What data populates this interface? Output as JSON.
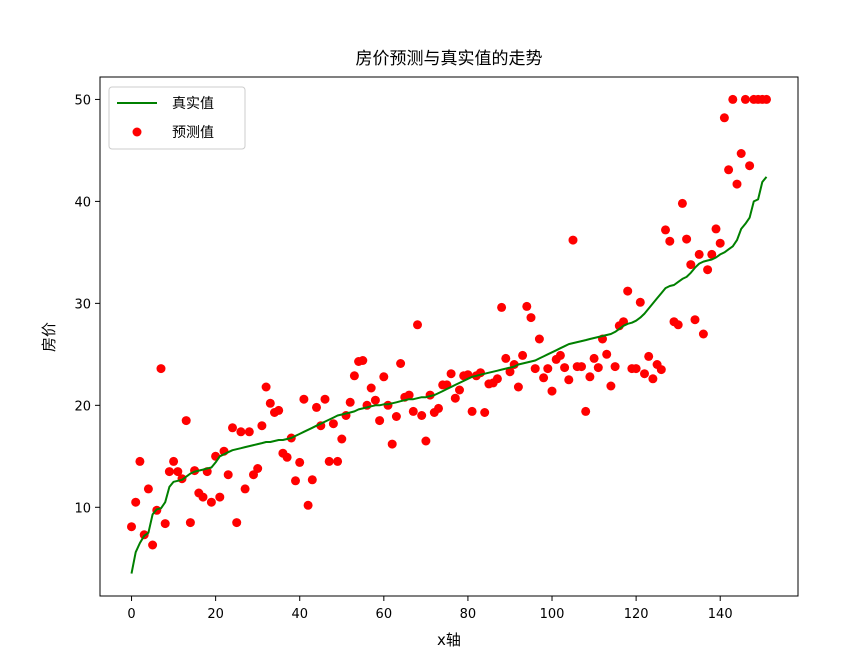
{
  "chart_data": {
    "type": "line+scatter",
    "title": "房价预测与真实值的走势",
    "xlabel": "x轴",
    "ylabel": "房价",
    "xlim": [
      -7.5,
      158.5
    ],
    "ylim": [
      1.3,
      52.2
    ],
    "xticks": [
      0,
      20,
      40,
      60,
      80,
      100,
      120,
      140
    ],
    "yticks": [
      10,
      20,
      30,
      40,
      50
    ],
    "grid": false,
    "legend_position": "top-left",
    "series": [
      {
        "name": "真实值",
        "kind": "line",
        "color": "#008000",
        "x": [
          0,
          1,
          2,
          3,
          4,
          5,
          6,
          7,
          8,
          9,
          10,
          11,
          12,
          13,
          14,
          15,
          16,
          17,
          18,
          19,
          20,
          21,
          22,
          23,
          24,
          25,
          26,
          27,
          28,
          29,
          30,
          31,
          32,
          33,
          34,
          35,
          36,
          37,
          38,
          39,
          40,
          41,
          42,
          43,
          44,
          45,
          46,
          47,
          48,
          49,
          50,
          51,
          52,
          53,
          54,
          55,
          56,
          57,
          58,
          59,
          60,
          61,
          62,
          63,
          64,
          65,
          66,
          67,
          68,
          69,
          70,
          71,
          72,
          73,
          74,
          75,
          76,
          77,
          78,
          79,
          80,
          81,
          82,
          83,
          84,
          85,
          86,
          87,
          88,
          89,
          90,
          91,
          92,
          93,
          94,
          95,
          96,
          97,
          98,
          99,
          100,
          101,
          102,
          103,
          104,
          105,
          106,
          107,
          108,
          109,
          110,
          111,
          112,
          113,
          114,
          115,
          116,
          117,
          118,
          119,
          120,
          121,
          122,
          123,
          124,
          125,
          126,
          127,
          128,
          129,
          130,
          131,
          132,
          133,
          134,
          135,
          136,
          137,
          138,
          139,
          140,
          141,
          142,
          143,
          144,
          145,
          146,
          147,
          148,
          149,
          150,
          151
        ],
        "y": [
          3.5,
          5.6,
          6.5,
          7.2,
          7.5,
          9.3,
          9.8,
          9.9,
          10.5,
          12.0,
          12.5,
          12.6,
          12.7,
          13.0,
          13.3,
          13.5,
          13.6,
          13.7,
          13.8,
          13.9,
          14.4,
          15.0,
          15.2,
          15.4,
          15.6,
          15.7,
          15.8,
          15.9,
          16.0,
          16.1,
          16.2,
          16.3,
          16.4,
          16.4,
          16.5,
          16.6,
          16.6,
          16.7,
          16.8,
          17.0,
          17.2,
          17.4,
          17.6,
          17.8,
          18.0,
          18.2,
          18.4,
          18.6,
          18.8,
          19.0,
          19.1,
          19.2,
          19.3,
          19.4,
          19.6,
          19.7,
          19.8,
          19.9,
          20.0,
          20.0,
          20.1,
          20.1,
          20.2,
          20.3,
          20.4,
          20.5,
          20.6,
          20.6,
          20.7,
          20.8,
          20.8,
          20.9,
          21.0,
          21.2,
          21.4,
          21.6,
          21.8,
          22.0,
          22.2,
          22.4,
          22.6,
          22.8,
          22.9,
          23.0,
          23.1,
          23.2,
          23.3,
          23.4,
          23.5,
          23.6,
          23.7,
          23.8,
          24.0,
          24.1,
          24.2,
          24.3,
          24.4,
          24.6,
          24.8,
          25.0,
          25.2,
          25.4,
          25.6,
          25.8,
          26.0,
          26.1,
          26.2,
          26.3,
          26.4,
          26.5,
          26.6,
          26.7,
          26.8,
          26.9,
          27.0,
          27.2,
          27.5,
          27.8,
          28.0,
          28.1,
          28.3,
          28.6,
          29.0,
          29.5,
          30.0,
          30.5,
          31.0,
          31.5,
          31.7,
          31.8,
          32.1,
          32.4,
          32.6,
          33.0,
          33.5,
          33.9,
          34.1,
          34.2,
          34.3,
          34.5,
          34.8,
          35.0,
          35.3,
          35.6,
          36.2,
          37.3,
          37.8,
          38.4,
          40.0,
          40.2,
          41.9,
          42.4
        ]
      },
      {
        "name": "预测值",
        "kind": "scatter",
        "color": "#ff0000",
        "points": [
          [
            0,
            8.1
          ],
          [
            1,
            10.5
          ],
          [
            2,
            14.5
          ],
          [
            3,
            7.3
          ],
          [
            4,
            11.8
          ],
          [
            5,
            6.3
          ],
          [
            6,
            9.7
          ],
          [
            7,
            23.6
          ],
          [
            8,
            8.4
          ],
          [
            9,
            13.5
          ],
          [
            10,
            14.5
          ],
          [
            11,
            13.5
          ],
          [
            12,
            12.8
          ],
          [
            13,
            18.5
          ],
          [
            14,
            8.5
          ],
          [
            15,
            13.6
          ],
          [
            16,
            11.4
          ],
          [
            17,
            11.0
          ],
          [
            18,
            13.5
          ],
          [
            19,
            10.5
          ],
          [
            20,
            15.0
          ],
          [
            21,
            11.0
          ],
          [
            22,
            15.5
          ],
          [
            23,
            13.2
          ],
          [
            24,
            17.8
          ],
          [
            25,
            8.5
          ],
          [
            26,
            17.4
          ],
          [
            27,
            11.8
          ],
          [
            28,
            17.4
          ],
          [
            29,
            13.2
          ],
          [
            30,
            13.8
          ],
          [
            31,
            18.0
          ],
          [
            32,
            21.8
          ],
          [
            33,
            20.2
          ],
          [
            34,
            19.3
          ],
          [
            35,
            19.5
          ],
          [
            36,
            15.3
          ],
          [
            37,
            14.9
          ],
          [
            38,
            16.8
          ],
          [
            39,
            12.6
          ],
          [
            40,
            14.4
          ],
          [
            41,
            20.6
          ],
          [
            42,
            10.2
          ],
          [
            43,
            12.7
          ],
          [
            44,
            19.8
          ],
          [
            45,
            18.0
          ],
          [
            46,
            20.6
          ],
          [
            47,
            14.5
          ],
          [
            48,
            18.2
          ],
          [
            49,
            14.5
          ],
          [
            50,
            16.7
          ],
          [
            51,
            19.0
          ],
          [
            52,
            20.3
          ],
          [
            53,
            22.9
          ],
          [
            54,
            24.3
          ],
          [
            55,
            24.4
          ],
          [
            56,
            20.0
          ],
          [
            57,
            21.7
          ],
          [
            58,
            20.5
          ],
          [
            59,
            18.5
          ],
          [
            60,
            22.8
          ],
          [
            61,
            20.0
          ],
          [
            62,
            16.2
          ],
          [
            63,
            18.9
          ],
          [
            64,
            24.1
          ],
          [
            65,
            20.8
          ],
          [
            66,
            21.0
          ],
          [
            67,
            19.4
          ],
          [
            68,
            27.9
          ],
          [
            69,
            19.0
          ],
          [
            70,
            16.5
          ],
          [
            71,
            21.0
          ],
          [
            72,
            19.3
          ],
          [
            73,
            19.7
          ],
          [
            74,
            22.0
          ],
          [
            75,
            22.0
          ],
          [
            76,
            23.1
          ],
          [
            77,
            20.7
          ],
          [
            78,
            21.5
          ],
          [
            79,
            22.9
          ],
          [
            80,
            23.0
          ],
          [
            81,
            19.4
          ],
          [
            82,
            22.9
          ],
          [
            83,
            23.2
          ],
          [
            84,
            19.3
          ],
          [
            85,
            22.1
          ],
          [
            86,
            22.2
          ],
          [
            87,
            22.6
          ],
          [
            88,
            29.6
          ],
          [
            89,
            24.6
          ],
          [
            90,
            23.3
          ],
          [
            91,
            24.0
          ],
          [
            92,
            21.8
          ],
          [
            93,
            24.9
          ],
          [
            94,
            29.7
          ],
          [
            95,
            28.6
          ],
          [
            96,
            23.6
          ],
          [
            97,
            26.5
          ],
          [
            98,
            22.7
          ],
          [
            99,
            23.6
          ],
          [
            100,
            21.4
          ],
          [
            101,
            24.5
          ],
          [
            102,
            24.9
          ],
          [
            103,
            23.7
          ],
          [
            104,
            22.5
          ],
          [
            105,
            36.2
          ],
          [
            106,
            23.8
          ],
          [
            107,
            23.8
          ],
          [
            108,
            19.4
          ],
          [
            109,
            22.8
          ],
          [
            110,
            24.6
          ],
          [
            111,
            23.7
          ],
          [
            112,
            26.5
          ],
          [
            113,
            25.0
          ],
          [
            114,
            21.9
          ],
          [
            115,
            23.8
          ],
          [
            116,
            27.8
          ],
          [
            117,
            28.2
          ],
          [
            118,
            31.2
          ],
          [
            119,
            23.6
          ],
          [
            120,
            23.6
          ],
          [
            121,
            30.1
          ],
          [
            122,
            23.1
          ],
          [
            123,
            24.8
          ],
          [
            124,
            22.6
          ],
          [
            125,
            24.0
          ],
          [
            126,
            23.5
          ],
          [
            127,
            37.2
          ],
          [
            128,
            36.1
          ],
          [
            129,
            28.2
          ],
          [
            130,
            27.9
          ],
          [
            131,
            39.8
          ],
          [
            132,
            36.3
          ],
          [
            133,
            33.8
          ],
          [
            134,
            28.4
          ],
          [
            135,
            34.8
          ],
          [
            136,
            27.0
          ],
          [
            137,
            33.3
          ],
          [
            138,
            34.8
          ],
          [
            139,
            37.3
          ],
          [
            140,
            35.9
          ],
          [
            141,
            48.2
          ],
          [
            142,
            43.1
          ],
          [
            143,
            50.0
          ],
          [
            144,
            41.7
          ],
          [
            145,
            44.7
          ],
          [
            146,
            50.0
          ],
          [
            147,
            43.5
          ],
          [
            148,
            50.0
          ],
          [
            149,
            50.0
          ],
          [
            150,
            50.0
          ],
          [
            151,
            50.0
          ]
        ]
      }
    ]
  }
}
